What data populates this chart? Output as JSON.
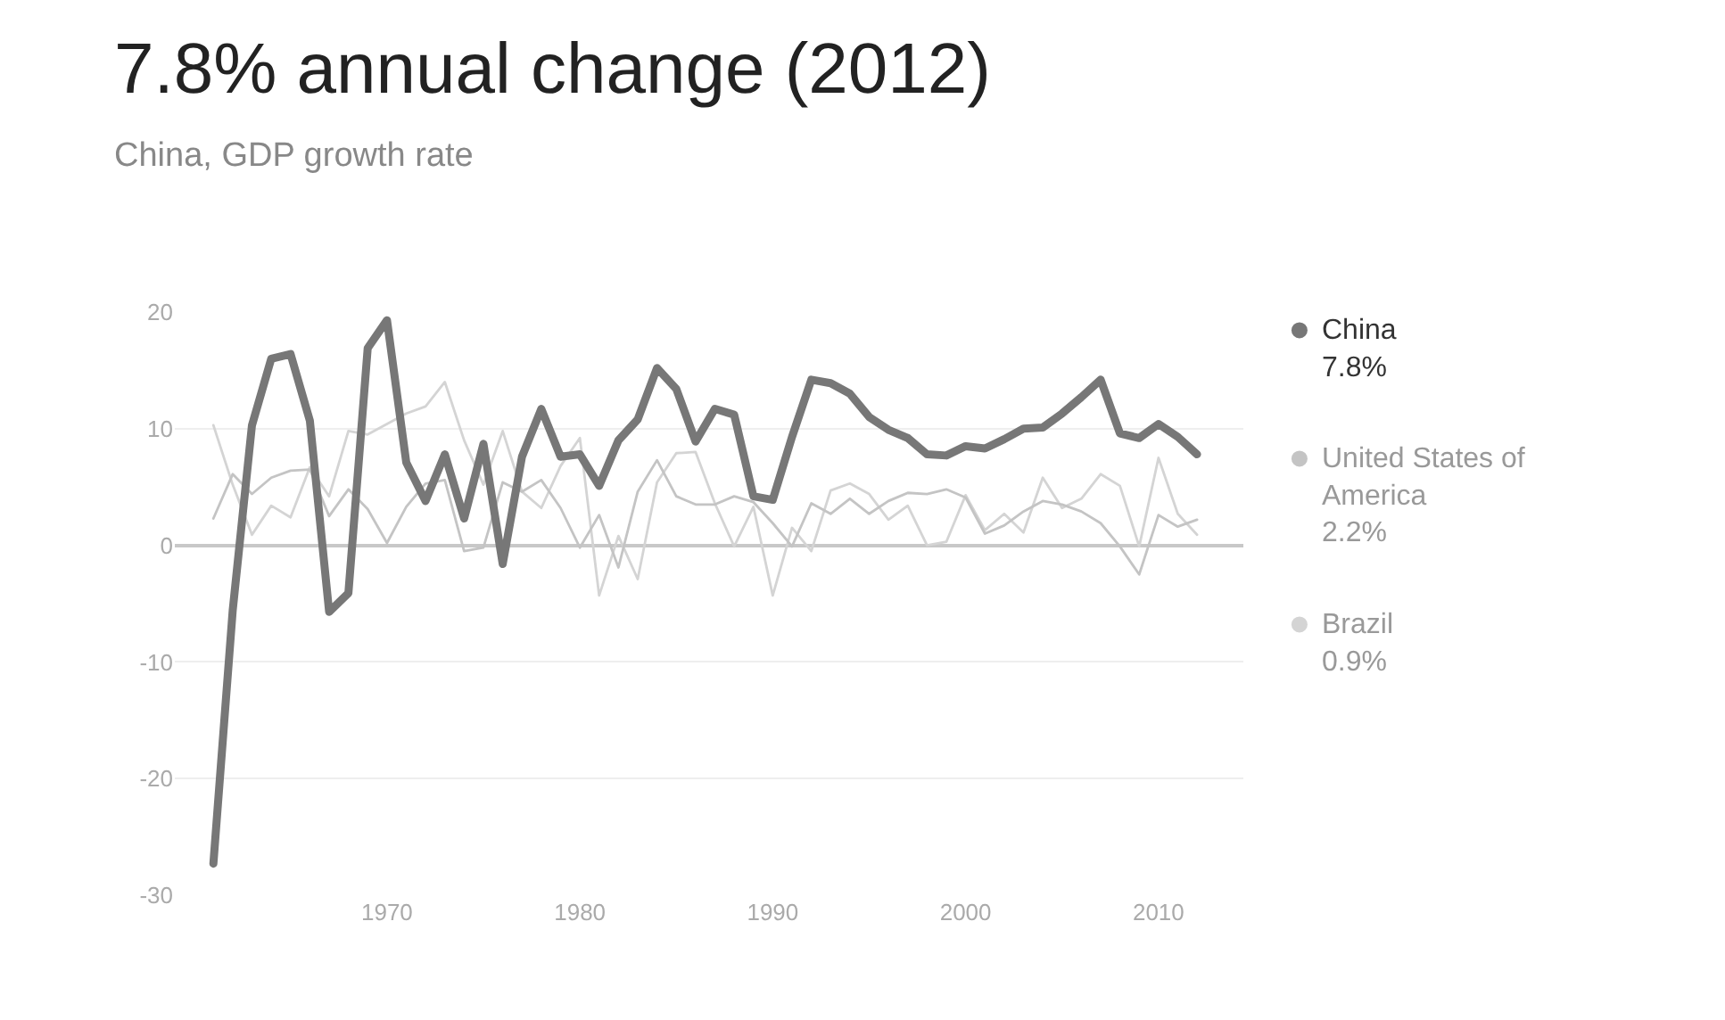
{
  "chart_data": {
    "type": "line",
    "title": "7.8% annual change (2012)",
    "subtitle": "China, GDP growth rate",
    "x": [
      1961,
      1962,
      1963,
      1964,
      1965,
      1966,
      1967,
      1968,
      1969,
      1970,
      1971,
      1972,
      1973,
      1974,
      1975,
      1976,
      1977,
      1978,
      1979,
      1980,
      1981,
      1982,
      1983,
      1984,
      1985,
      1986,
      1987,
      1988,
      1989,
      1990,
      1991,
      1992,
      1993,
      1994,
      1995,
      1996,
      1997,
      1998,
      1999,
      2000,
      2001,
      2002,
      2003,
      2004,
      2005,
      2006,
      2007,
      2008,
      2009,
      2010,
      2011,
      2012
    ],
    "series": [
      {
        "name": "China",
        "color": "#777777",
        "values": [
          -27.3,
          -5.6,
          10.3,
          16.0,
          16.4,
          10.7,
          -5.7,
          -4.1,
          16.9,
          19.3,
          7.1,
          3.8,
          7.8,
          2.3,
          8.7,
          -1.6,
          7.6,
          11.7,
          7.6,
          7.8,
          5.1,
          9.0,
          10.8,
          15.2,
          13.4,
          8.9,
          11.7,
          11.2,
          4.2,
          3.9,
          9.3,
          14.2,
          13.9,
          13.0,
          11.0,
          9.9,
          9.2,
          7.8,
          7.7,
          8.5,
          8.3,
          9.1,
          10.0,
          10.1,
          11.3,
          12.7,
          14.2,
          9.6,
          9.2,
          10.4,
          9.3,
          7.8
        ]
      },
      {
        "name": "United States of America",
        "color": "#c4c4c4",
        "values": [
          2.3,
          6.1,
          4.4,
          5.8,
          6.4,
          6.5,
          2.5,
          4.8,
          3.1,
          0.2,
          3.3,
          5.3,
          5.6,
          -0.5,
          -0.2,
          5.4,
          4.6,
          5.6,
          3.2,
          -0.2,
          2.6,
          -1.9,
          4.6,
          7.3,
          4.2,
          3.5,
          3.5,
          4.2,
          3.7,
          1.9,
          -0.1,
          3.6,
          2.7,
          4.0,
          2.7,
          3.8,
          4.5,
          4.4,
          4.8,
          4.1,
          1.0,
          1.7,
          2.9,
          3.8,
          3.5,
          2.9,
          1.9,
          -0.1,
          -2.5,
          2.6,
          1.6,
          2.2
        ]
      },
      {
        "name": "Brazil",
        "color": "#d4d4d4",
        "values": [
          10.3,
          5.2,
          0.9,
          3.4,
          2.4,
          6.7,
          4.2,
          9.8,
          9.5,
          10.4,
          11.3,
          11.9,
          14.0,
          9.0,
          5.2,
          9.8,
          4.6,
          3.2,
          6.8,
          9.2,
          -4.3,
          0.8,
          -2.9,
          5.4,
          7.9,
          8.0,
          3.6,
          -0.1,
          3.3,
          -4.3,
          1.5,
          -0.5,
          4.7,
          5.3,
          4.4,
          2.2,
          3.4,
          0.0,
          0.3,
          4.3,
          1.3,
          2.7,
          1.1,
          5.8,
          3.2,
          4.0,
          6.1,
          5.1,
          -0.1,
          7.5,
          2.7,
          0.9
        ]
      }
    ],
    "annotations": [
      "7.8%",
      "2.2%",
      "0.9%"
    ],
    "xlim": [
      1959,
      2014.4
    ],
    "xticks": [
      1970,
      1980,
      1990,
      2000,
      2010
    ],
    "ylim": [
      -30,
      20
    ],
    "yticks": [
      -30,
      -20,
      -10,
      0,
      10,
      20
    ],
    "grid": "y",
    "legend": "right",
    "marker": "none",
    "line_style": "solid"
  }
}
